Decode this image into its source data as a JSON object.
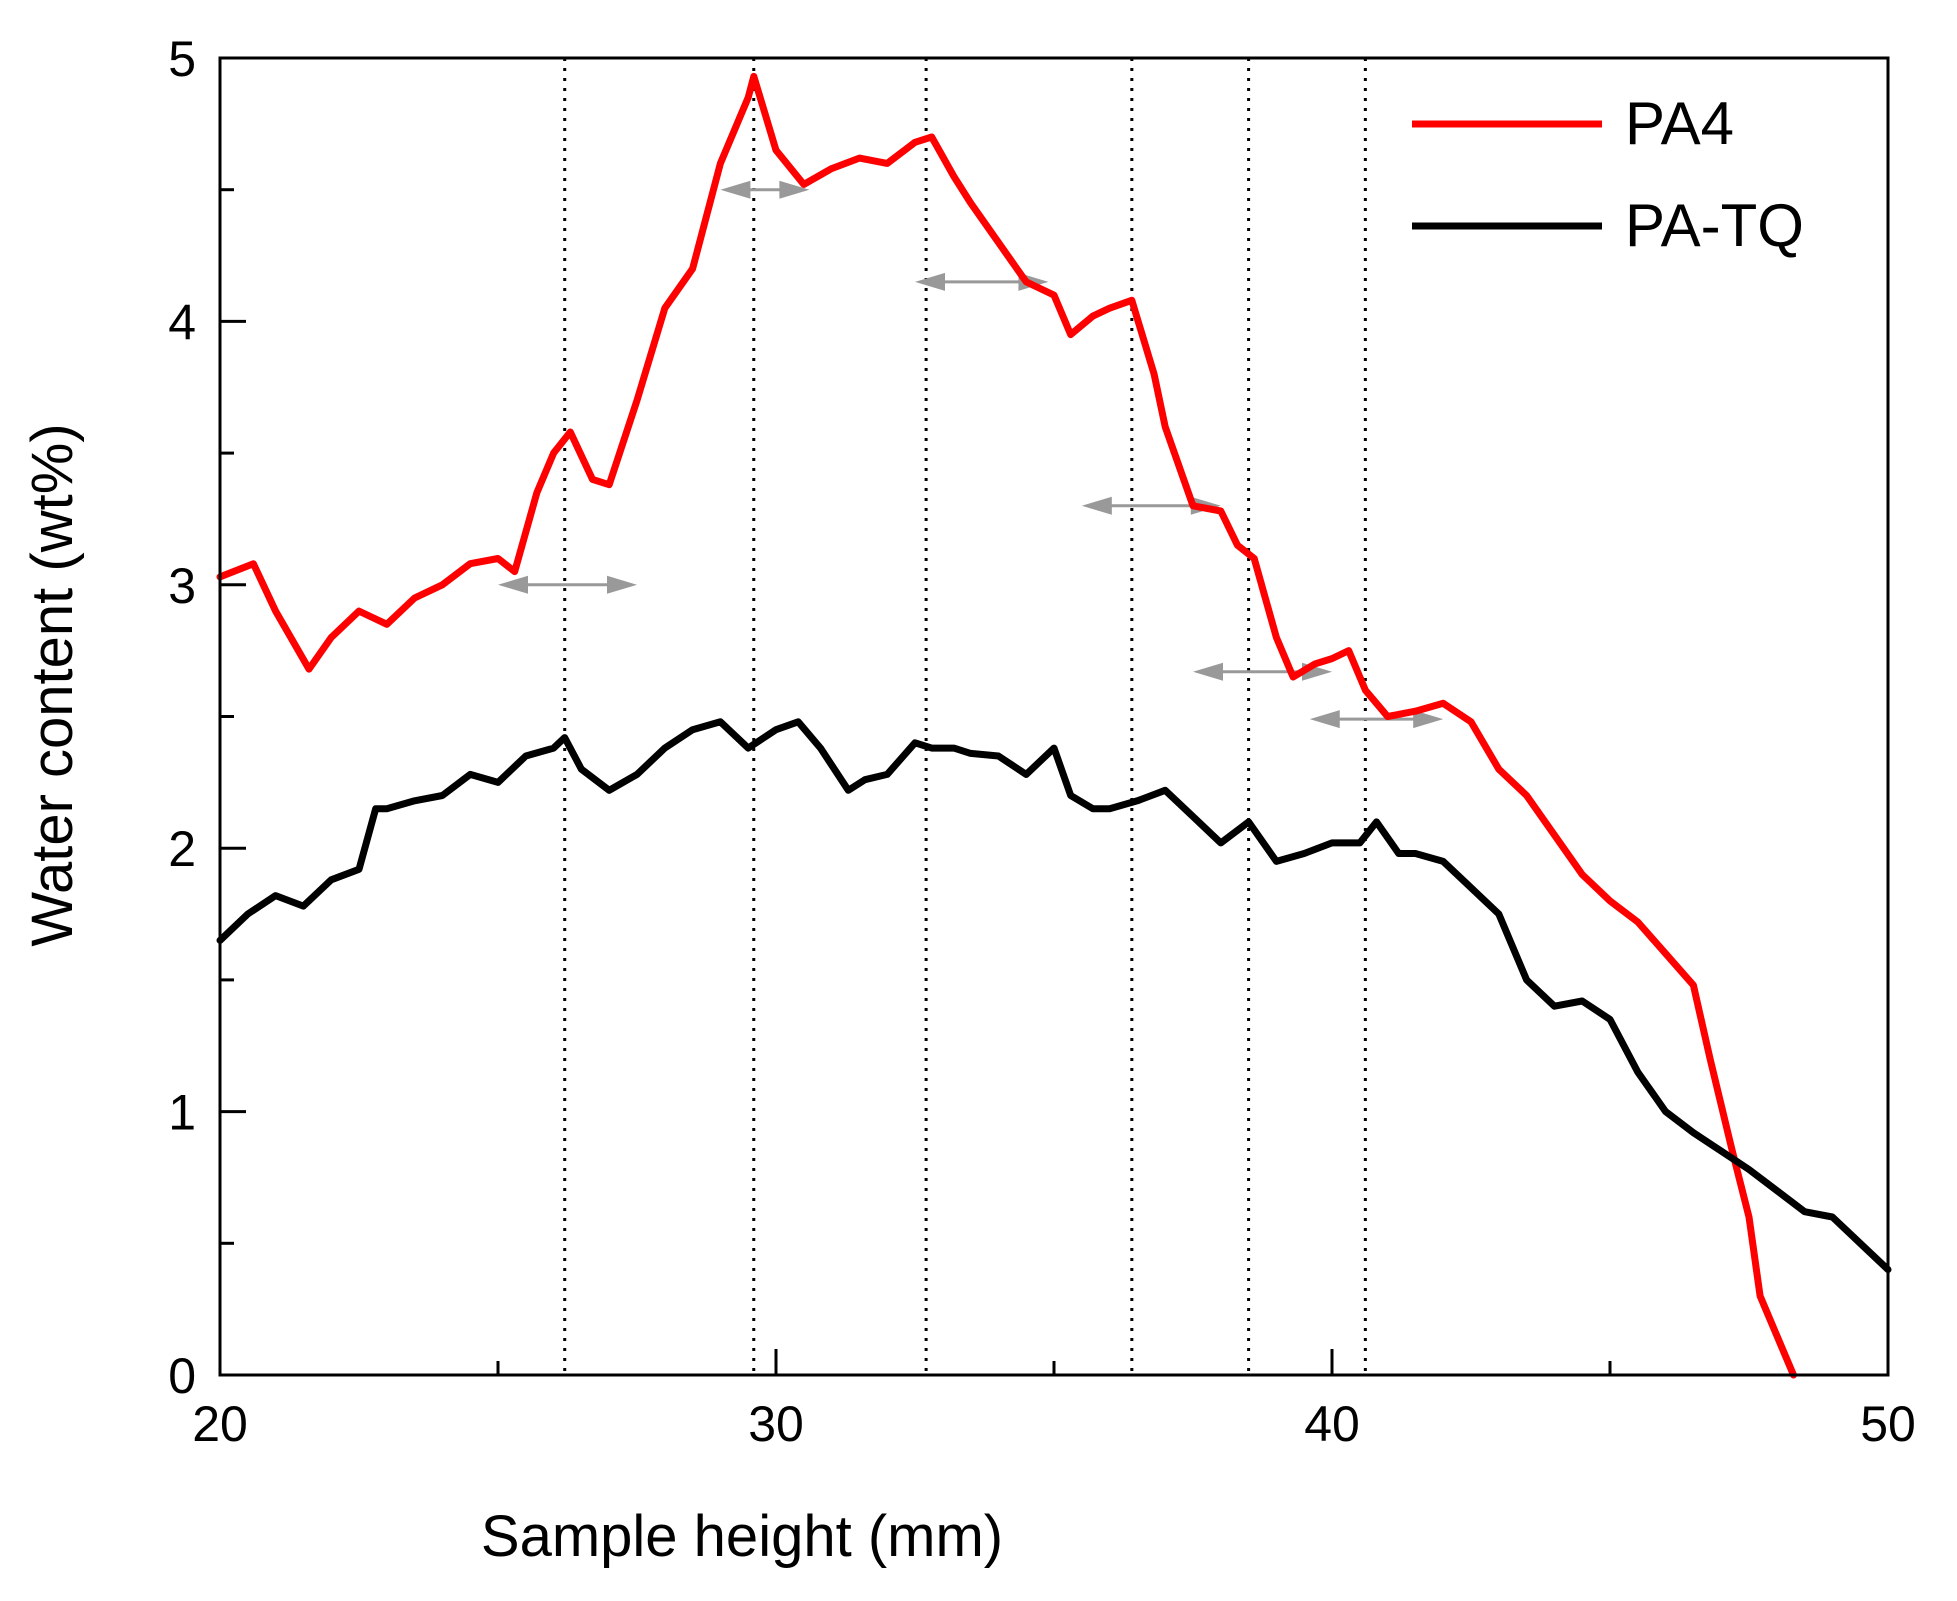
{
  "chart_data": {
    "type": "line",
    "title": "",
    "xlabel": "Sample height (mm)",
    "ylabel": "Water content (wt%)",
    "xlim": [
      20,
      50
    ],
    "ylim": [
      0,
      5
    ],
    "x_major_ticks": [
      20,
      30,
      40,
      50
    ],
    "x_minor_ticks": [
      25,
      35,
      45
    ],
    "y_major_ticks": [
      0,
      1,
      2,
      3,
      4,
      5
    ],
    "y_minor_ticks": [
      0.5,
      1.5,
      2.5,
      3.5,
      4.5
    ],
    "x_tick_labels": [
      "20",
      "30",
      "40",
      "50"
    ],
    "y_tick_labels": [
      "0",
      "1",
      "2",
      "3",
      "4",
      "5"
    ],
    "grid": false,
    "legend_position": "top-right",
    "series": [
      {
        "name": "PA4",
        "color": "#ff0000",
        "x": [
          20.0,
          20.6,
          21.0,
          21.6,
          22.0,
          22.5,
          23.0,
          23.5,
          24.0,
          24.5,
          25.0,
          25.3,
          25.7,
          26.0,
          26.3,
          26.7,
          27.0,
          27.5,
          28.0,
          28.5,
          29.0,
          29.5,
          29.6,
          30.0,
          30.5,
          31.0,
          31.5,
          32.0,
          32.5,
          32.8,
          33.2,
          33.5,
          34.0,
          34.5,
          35.0,
          35.3,
          35.7,
          36.0,
          36.4,
          36.8,
          37.0,
          37.5,
          38.0,
          38.3,
          38.6,
          39.0,
          39.3,
          39.7,
          40.0,
          40.3,
          40.6,
          41.0,
          41.5,
          42.0,
          42.5,
          43.0,
          43.5,
          44.0,
          44.5,
          45.0,
          45.5,
          46.0,
          46.5,
          46.8,
          47.2,
          47.5,
          47.7,
          48.0,
          48.3
        ],
        "values": [
          3.03,
          3.08,
          2.9,
          2.68,
          2.8,
          2.9,
          2.85,
          2.95,
          3.0,
          3.08,
          3.1,
          3.05,
          3.35,
          3.5,
          3.58,
          3.4,
          3.38,
          3.7,
          4.05,
          4.2,
          4.6,
          4.85,
          4.93,
          4.65,
          4.52,
          4.58,
          4.62,
          4.6,
          4.68,
          4.7,
          4.55,
          4.45,
          4.3,
          4.15,
          4.1,
          3.95,
          4.02,
          4.05,
          4.08,
          3.8,
          3.6,
          3.3,
          3.28,
          3.15,
          3.1,
          2.8,
          2.65,
          2.7,
          2.72,
          2.75,
          2.6,
          2.5,
          2.52,
          2.55,
          2.48,
          2.3,
          2.2,
          2.05,
          1.9,
          1.8,
          1.72,
          1.6,
          1.48,
          1.2,
          0.85,
          0.6,
          0.3,
          0.15,
          0.0
        ]
      },
      {
        "name": "PA-TQ",
        "color": "#000000",
        "x": [
          20.0,
          20.5,
          21.0,
          21.5,
          22.0,
          22.5,
          22.8,
          23.0,
          23.5,
          24.0,
          24.5,
          25.0,
          25.5,
          26.0,
          26.2,
          26.5,
          27.0,
          27.5,
          28.0,
          28.5,
          29.0,
          29.5,
          30.0,
          30.4,
          30.8,
          31.3,
          31.6,
          32.0,
          32.5,
          32.8,
          33.2,
          33.5,
          34.0,
          34.5,
          35.0,
          35.3,
          35.7,
          36.0,
          36.5,
          37.0,
          37.5,
          38.0,
          38.5,
          39.0,
          39.5,
          40.0,
          40.5,
          40.8,
          41.2,
          41.5,
          42.0,
          42.5,
          43.0,
          43.5,
          44.0,
          44.5,
          45.0,
          45.5,
          46.0,
          46.5,
          47.0,
          47.5,
          48.0,
          48.5,
          49.0,
          49.5,
          50.0
        ],
        "values": [
          1.65,
          1.75,
          1.82,
          1.78,
          1.88,
          1.92,
          2.15,
          2.15,
          2.18,
          2.2,
          2.28,
          2.25,
          2.35,
          2.38,
          2.42,
          2.3,
          2.22,
          2.28,
          2.38,
          2.45,
          2.48,
          2.38,
          2.45,
          2.48,
          2.38,
          2.22,
          2.26,
          2.28,
          2.4,
          2.38,
          2.38,
          2.36,
          2.35,
          2.28,
          2.38,
          2.2,
          2.15,
          2.15,
          2.18,
          2.22,
          2.12,
          2.02,
          2.1,
          1.95,
          1.98,
          2.02,
          2.02,
          2.1,
          1.98,
          1.98,
          1.95,
          1.85,
          1.75,
          1.5,
          1.4,
          1.42,
          1.35,
          1.15,
          1.0,
          0.92,
          0.85,
          0.78,
          0.7,
          0.62,
          0.6,
          0.5,
          0.4
        ]
      }
    ],
    "annotations": {
      "dotted_vertical_lines_x": [
        26.2,
        29.6,
        32.7,
        36.4,
        38.5,
        40.6
      ],
      "double_arrows": [
        {
          "x1": 25.0,
          "x2": 27.5,
          "y": 3.0
        },
        {
          "x1": 29.0,
          "x2": 30.6,
          "y": 4.5
        },
        {
          "x1": 32.5,
          "x2": 34.9,
          "y": 4.15
        },
        {
          "x1": 35.5,
          "x2": 38.0,
          "y": 3.3
        },
        {
          "x1": 37.5,
          "x2": 40.0,
          "y": 2.67
        },
        {
          "x1": 39.6,
          "x2": 42.0,
          "y": 2.49
        }
      ],
      "arrow_color": "#999999"
    }
  }
}
